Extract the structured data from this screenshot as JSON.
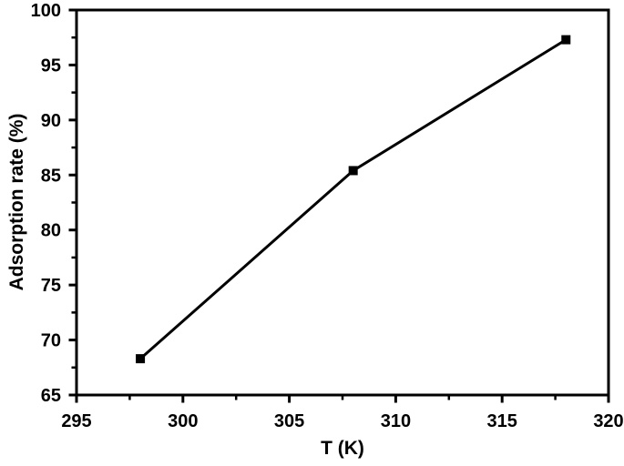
{
  "figure": {
    "background": "#ffffff",
    "ink_color": "#000000"
  },
  "chart_data": {
    "type": "line",
    "title": "",
    "xlabel": "T (K)",
    "ylabel": "Adsorption rate (%)",
    "series": [
      {
        "name": "Adsorption rate",
        "x": [
          298,
          308,
          318
        ],
        "values": [
          68.3,
          85.4,
          97.3
        ]
      }
    ],
    "xlim": [
      295,
      320
    ],
    "ylim": [
      65,
      100
    ],
    "x_major_step": 5,
    "y_major_step": 5,
    "x_minor_step": 2.5,
    "y_minor_step": 2.5,
    "x_tick_labels": [
      "295",
      "300",
      "305",
      "310",
      "315",
      "320"
    ],
    "y_tick_labels": [
      "65",
      "70",
      "75",
      "80",
      "85",
      "90",
      "95",
      "100"
    ],
    "grid": false,
    "legend": "none",
    "marker": "filled-square",
    "line_color": "#000000",
    "marker_color": "#000000",
    "axis_color": "#000000"
  }
}
